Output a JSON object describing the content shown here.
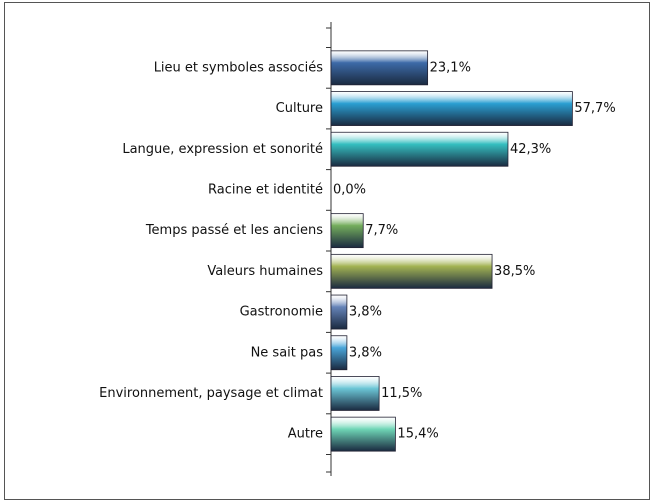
{
  "chart_data": {
    "type": "hbar",
    "categories": [
      "Lieu et symboles associés",
      "Culture",
      "Langue, expression et sonorité",
      "Racine et identité",
      "Temps passé et les anciens",
      "Valeurs humaines",
      "Gastronomie",
      "Ne sait pas",
      "Environnement, paysage et climat",
      "Autre"
    ],
    "values": [
      23.1,
      57.7,
      42.3,
      0,
      7.7,
      38.5,
      3.8,
      3.8,
      11.5,
      15.4
    ],
    "value_labels": [
      "23,1%",
      "57,7%",
      "42,3%",
      "0,0%",
      "7,7%",
      "38,5%",
      "3,8%",
      "3,8%",
      "11,5%",
      "15,4%"
    ],
    "colors": [
      "#3d6aa8",
      "#2a9fd2",
      "#35bfc0",
      "#3d6aa8",
      "#74ad5c",
      "#a3b353",
      "#6583b8",
      "#4aa6da",
      "#6cc6d6",
      "#6fd6b6"
    ],
    "xlim": [
      0,
      60
    ]
  }
}
